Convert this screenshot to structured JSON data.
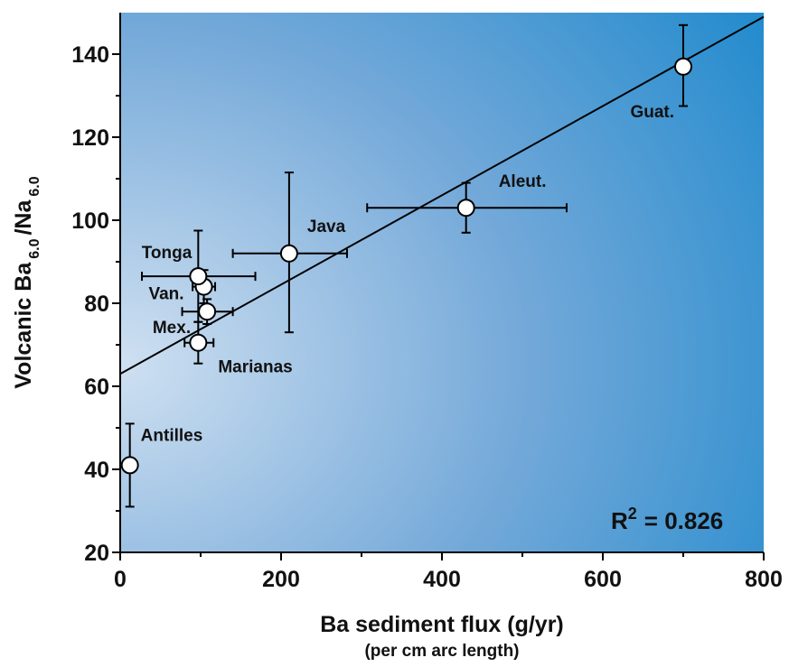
{
  "chart_data": {
    "type": "scatter",
    "title": "",
    "xlabel": "Ba sediment flux (g/yr)",
    "xlabel_sub": "(per cm arc length)",
    "ylabel_parts": {
      "a": "Volcanic Ba",
      "sub1": "6.0",
      "b": "/Na",
      "sub2": "6.0"
    },
    "xlim": [
      0,
      800
    ],
    "ylim": [
      20,
      150
    ],
    "x_ticks": [
      0,
      200,
      400,
      600,
      800
    ],
    "y_ticks": [
      20,
      40,
      60,
      80,
      100,
      120,
      140
    ],
    "grid": false,
    "points": [
      {
        "name": "Antilles",
        "x": 12,
        "y": 41,
        "x_err": null,
        "y_err": [
          31,
          51
        ]
      },
      {
        "name": "Marianas",
        "x": 97,
        "y": 70.5,
        "x_err": [
          80,
          116
        ],
        "y_err": [
          65.5,
          75.5
        ]
      },
      {
        "name": "Mex.",
        "x": 108,
        "y": 78,
        "x_err": [
          77,
          140
        ],
        "y_err": [
          75,
          81
        ]
      },
      {
        "name": "Van.",
        "x": 104,
        "y": 84,
        "x_err": [
          90,
          118
        ],
        "y_err": [
          80,
          88
        ]
      },
      {
        "name": "Tonga",
        "x": 97,
        "y": 86.5,
        "x_err": [
          27,
          168
        ],
        "y_err": [
          75.5,
          97.5
        ]
      },
      {
        "name": "Java",
        "x": 210,
        "y": 92,
        "x_err": [
          140,
          282
        ],
        "y_err": [
          73,
          111.5
        ]
      },
      {
        "name": "Aleut.",
        "x": 430,
        "y": 103,
        "x_err": [
          307,
          555
        ],
        "y_err": [
          97,
          109
        ]
      },
      {
        "name": "Guat.",
        "x": 700,
        "y": 137,
        "x_err": null,
        "y_err": [
          127.5,
          147
        ]
      }
    ],
    "fit_line": {
      "intercept": 63,
      "slope": 0.1075
    },
    "annotation": {
      "r_label": "R",
      "r_sup": "2",
      "r_value": "= 0.826"
    },
    "colors": {
      "bg_light": "#c9dcef",
      "bg_dark": "#1a88cc",
      "marker_fill": "#ffffff",
      "ink": "#000000"
    }
  }
}
